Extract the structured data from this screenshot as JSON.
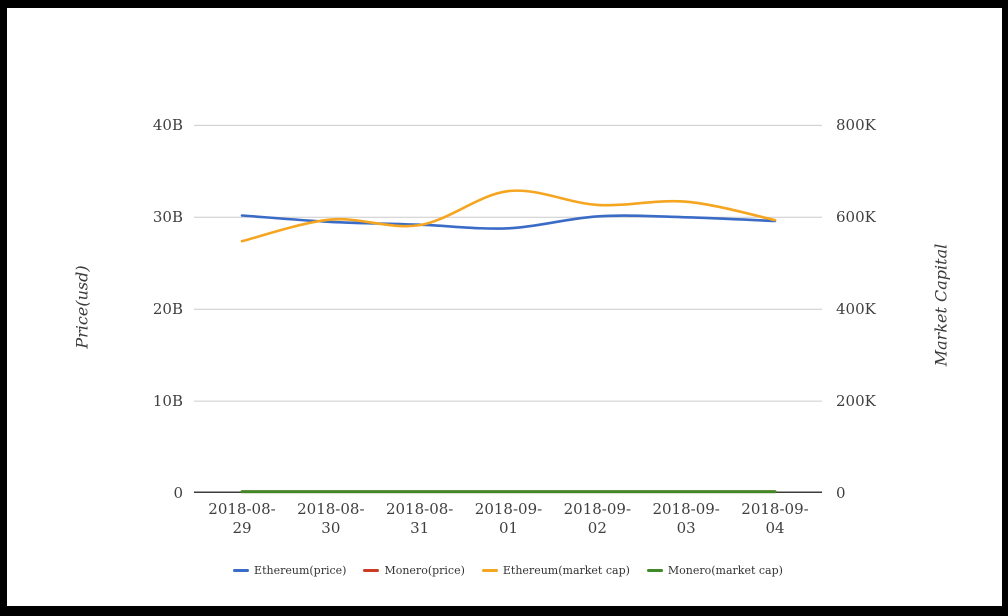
{
  "frame": {
    "border_color": "#000000",
    "background": "#ffffff"
  },
  "chart_data": {
    "type": "line",
    "title": "",
    "grid": "horizontal",
    "legend_position": "bottom",
    "x": [
      "2018-08-29",
      "2018-08-30",
      "2018-08-31",
      "2018-09-01",
      "2018-09-02",
      "2018-09-03",
      "2018-09-04"
    ],
    "y_left": {
      "label": "Price(usd)",
      "unit": "B",
      "min": 0,
      "max": 40,
      "ticks": [
        0,
        10,
        20,
        30,
        40
      ],
      "tick_labels": [
        "0",
        "10B",
        "20B",
        "30B",
        "40B"
      ]
    },
    "y_right": {
      "label": "Market Capital",
      "unit": "K",
      "min": 0,
      "max": 800,
      "ticks": [
        0,
        200,
        400,
        600,
        800
      ],
      "tick_labels": [
        "0",
        "200K",
        "400K",
        "600K",
        "800K"
      ]
    },
    "series": [
      {
        "name": "Ethereum(price)",
        "axis": "left",
        "color": "#3a6bc6",
        "values": [
          30.2,
          29.5,
          29.2,
          28.8,
          30.1,
          30.0,
          29.6
        ]
      },
      {
        "name": "Monero(price)",
        "axis": "left",
        "color": "#cc3b23",
        "values": [
          0,
          0,
          0,
          0,
          0,
          0,
          0
        ]
      },
      {
        "name": "Ethereum(market cap)",
        "axis": "right",
        "color": "#f5a51f",
        "values": [
          548,
          595,
          583,
          657,
          627,
          634,
          594
        ]
      },
      {
        "name": "Monero(market cap)",
        "axis": "right",
        "color": "#3f8a28",
        "values": [
          0,
          0,
          0,
          0,
          0,
          0,
          0
        ]
      }
    ],
    "colors": {
      "gridline": "#cccccc",
      "axis_line": "#3c3c3c",
      "tick_text": "#3f3f3f"
    }
  }
}
